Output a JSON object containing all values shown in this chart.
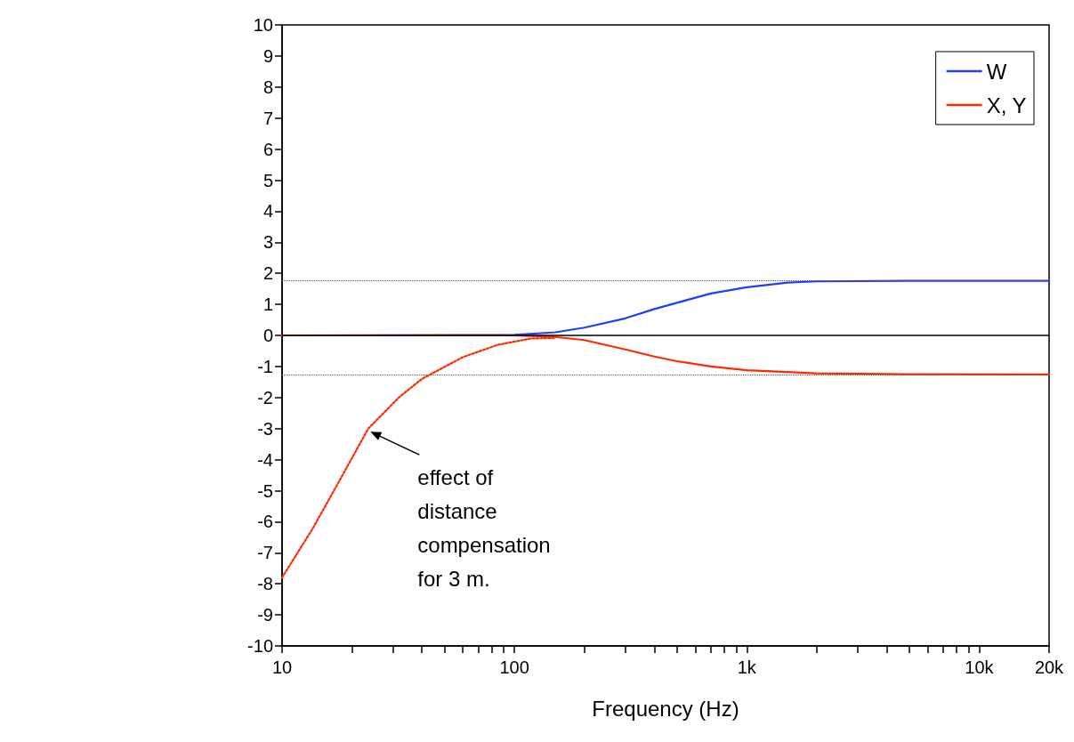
{
  "chart_data": {
    "type": "line",
    "xlabel": "Frequency (Hz)",
    "log": "x",
    "xlim": [
      10,
      20000
    ],
    "xticks": [
      {
        "value": 10,
        "label": "10"
      },
      {
        "value": 20,
        "label": null
      },
      {
        "value": 30,
        "label": null
      },
      {
        "value": 40,
        "label": null
      },
      {
        "value": 50,
        "label": null
      },
      {
        "value": 60,
        "label": null
      },
      {
        "value": 70,
        "label": null
      },
      {
        "value": 80,
        "label": null
      },
      {
        "value": 90,
        "label": null
      },
      {
        "value": 100,
        "label": "100"
      },
      {
        "value": 200,
        "label": null
      },
      {
        "value": 300,
        "label": null
      },
      {
        "value": 400,
        "label": null
      },
      {
        "value": 500,
        "label": null
      },
      {
        "value": 600,
        "label": null
      },
      {
        "value": 700,
        "label": null
      },
      {
        "value": 800,
        "label": null
      },
      {
        "value": 900,
        "label": null
      },
      {
        "value": 1000,
        "label": "1k"
      },
      {
        "value": 2000,
        "label": null
      },
      {
        "value": 3000,
        "label": null
      },
      {
        "value": 4000,
        "label": null
      },
      {
        "value": 5000,
        "label": null
      },
      {
        "value": 6000,
        "label": null
      },
      {
        "value": 7000,
        "label": null
      },
      {
        "value": 8000,
        "label": null
      },
      {
        "value": 9000,
        "label": null
      },
      {
        "value": 10000,
        "label": "10k"
      },
      {
        "value": 20000,
        "label": "20k"
      }
    ],
    "ylim": [
      -10,
      10
    ],
    "yticks": [
      -10,
      -9,
      -8,
      -7,
      -6,
      -5,
      -4,
      -3,
      -2,
      -1,
      0,
      1,
      2,
      3,
      4,
      5,
      6,
      7,
      8,
      9,
      10
    ],
    "grid": false,
    "legend": "top right",
    "marker": "none",
    "series": [
      {
        "name": "W",
        "color": "#1f3fff",
        "line_style": "solid",
        "x": [
          10,
          100,
          150,
          200,
          300,
          400,
          500,
          700,
          1000,
          1500,
          2000,
          5000,
          20000
        ],
        "values": [
          0,
          0.02,
          0.1,
          0.25,
          0.55,
          0.85,
          1.05,
          1.35,
          1.55,
          1.7,
          1.74,
          1.76,
          1.76
        ]
      },
      {
        "name": "X, Y",
        "color": "#ff2a00",
        "line_style": "solid",
        "x": [
          10,
          100,
          150,
          200,
          300,
          400,
          500,
          700,
          1000,
          2000,
          5000,
          20000
        ],
        "values": [
          0,
          0,
          -0.05,
          -0.15,
          -0.45,
          -0.68,
          -0.83,
          -1.0,
          -1.12,
          -1.22,
          -1.25,
          -1.26
        ]
      },
      {
        "color": "#ff2a00",
        "line_style": "dotted",
        "x": [
          10,
          13.6,
          17.9,
          23.5,
          31.8,
          40,
          60,
          85,
          118,
          150
        ],
        "values": [
          -7.8,
          -6.2,
          -4.6,
          -3.0,
          -2.0,
          -1.4,
          -0.7,
          -0.3,
          -0.1,
          -0.08
        ]
      }
    ],
    "ref_lines": [
      {
        "axis": "y",
        "value": 0,
        "color": "#000000",
        "line_style": "solid"
      },
      {
        "axis": "y",
        "value": 1.76,
        "color": "#555555",
        "line_style": "dotted"
      },
      {
        "axis": "y",
        "value": -1.26,
        "color": "#555555",
        "line_style": "dotted"
      }
    ],
    "annotations": [
      {
        "text": "effect of\ndistance\ncompensation\nfor 3 m.",
        "x": 24,
        "y": -3.1
      }
    ]
  }
}
